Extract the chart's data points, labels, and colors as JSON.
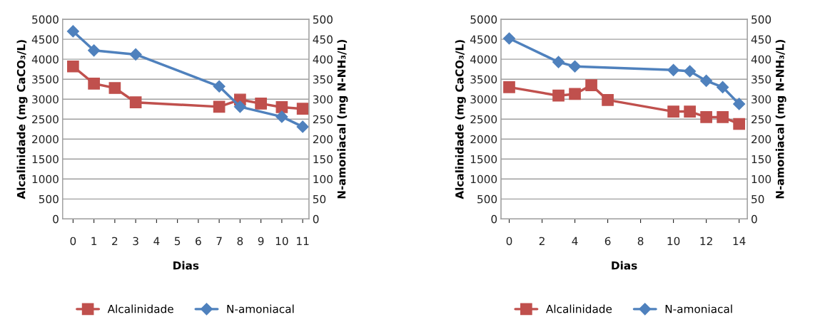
{
  "chart_data": [
    {
      "type": "line",
      "xlabel": "Dias",
      "ylabel": "Alcalinidade (mg CaCO₃/L)",
      "y2label": "N-amoniacal (mg N-NH₃/L)",
      "xlim": [
        -0.5,
        11.3
      ],
      "xticks": [
        0,
        1,
        2,
        3,
        4,
        5,
        6,
        7,
        8,
        9,
        10,
        11
      ],
      "ylim": [
        0,
        5000
      ],
      "yticks": [
        0,
        500,
        1000,
        1500,
        2000,
        2500,
        3000,
        3500,
        4000,
        4500,
        5000
      ],
      "y2lim": [
        0,
        500
      ],
      "y2ticks": [
        0,
        50,
        100,
        150,
        200,
        250,
        300,
        350,
        400,
        450,
        500
      ],
      "grid": "y",
      "legend": "bottom",
      "series": [
        {
          "name": "Alcalinidade",
          "color": "#c0504d",
          "marker": "square",
          "x": [
            0,
            1,
            2,
            3,
            7,
            8,
            9,
            10,
            11
          ],
          "values": [
            3820,
            3390,
            3280,
            2920,
            2810,
            2990,
            2890,
            2800,
            2760
          ]
        },
        {
          "name": "N-amoniacal",
          "color": "#4f81bd",
          "marker": "diamond",
          "axis": "y2",
          "x": [
            0,
            1,
            3,
            7,
            8,
            10,
            11
          ],
          "values": [
            470,
            422,
            412,
            332,
            281,
            256,
            231
          ]
        }
      ]
    },
    {
      "type": "line",
      "xlabel": "Dias",
      "ylabel": "Alcalinidade (mg CaCO₃/L)",
      "y2label": "N-amoniacal (mg N-NH₃/L)",
      "xlim": [
        -0.5,
        14.5
      ],
      "xticks": [
        0,
        2,
        4,
        6,
        8,
        10,
        12,
        14
      ],
      "ylim": [
        0,
        5000
      ],
      "yticks": [
        0,
        500,
        1000,
        1500,
        2000,
        2500,
        3000,
        3500,
        4000,
        4500,
        5000
      ],
      "y2lim": [
        0,
        500
      ],
      "y2ticks": [
        0,
        50,
        100,
        150,
        200,
        250,
        300,
        350,
        400,
        450,
        500
      ],
      "grid": "y",
      "legend": "bottom",
      "series": [
        {
          "name": "Alcalinidade",
          "color": "#c0504d",
          "marker": "square",
          "x": [
            0,
            3,
            4,
            5,
            6,
            10,
            11,
            12,
            13,
            14
          ],
          "values": [
            3300,
            3090,
            3130,
            3350,
            2980,
            2690,
            2690,
            2550,
            2550,
            2380
          ]
        },
        {
          "name": "N-amoniacal",
          "color": "#4f81bd",
          "marker": "diamond",
          "axis": "y2",
          "x": [
            0,
            3,
            4,
            10,
            11,
            12,
            13,
            14
          ],
          "values": [
            452,
            393,
            382,
            373,
            370,
            346,
            330,
            288
          ]
        }
      ]
    }
  ]
}
